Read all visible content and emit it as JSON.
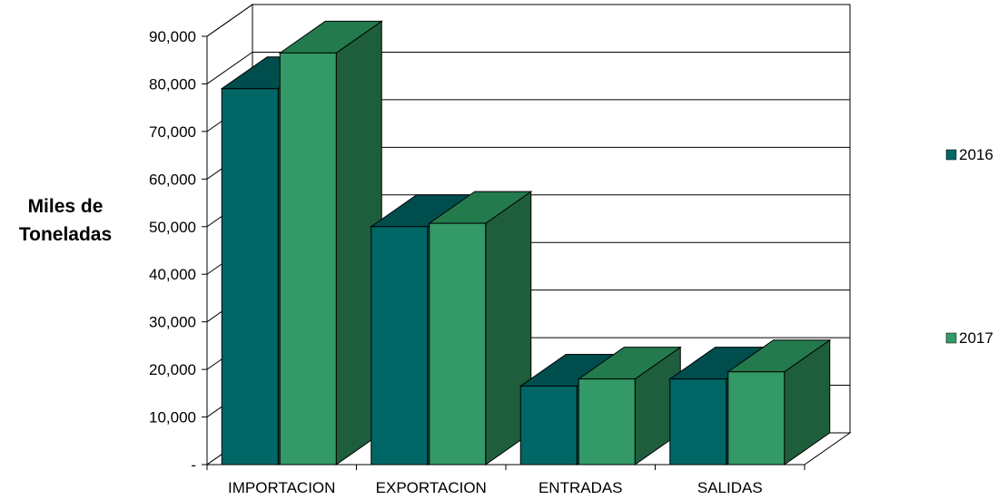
{
  "chart_data": {
    "type": "bar",
    "title": "",
    "ylabel_lines": [
      "Miles de",
      "Toneladas"
    ],
    "xlabel": "",
    "categories": [
      "IMPORTACION",
      "EXPORTACION",
      "ENTRADAS",
      "SALIDAS"
    ],
    "series": [
      {
        "name": "2016",
        "values": [
          79000,
          50000,
          16500,
          18000
        ],
        "front": "#006666",
        "top": "#004d4d",
        "side": "#005555"
      },
      {
        "name": "2017",
        "values": [
          86500,
          50700,
          18000,
          19500
        ],
        "front": "#339966",
        "top": "#237a4d",
        "side": "#1e5e3c"
      }
    ],
    "ylim": [
      0,
      90000
    ],
    "yticks": [
      {
        "value": 0,
        "label": "-"
      },
      {
        "value": 10000,
        "label": "10,000"
      },
      {
        "value": 20000,
        "label": "20,000"
      },
      {
        "value": 30000,
        "label": "30,000"
      },
      {
        "value": 40000,
        "label": "40,000"
      },
      {
        "value": 50000,
        "label": "50,000"
      },
      {
        "value": 60000,
        "label": "60,000"
      },
      {
        "value": 70000,
        "label": "70,000"
      },
      {
        "value": 80000,
        "label": "80,000"
      },
      {
        "value": 90000,
        "label": "90,000"
      }
    ],
    "grid": true,
    "legend_position": "right",
    "style": "3d-clustered-column"
  }
}
